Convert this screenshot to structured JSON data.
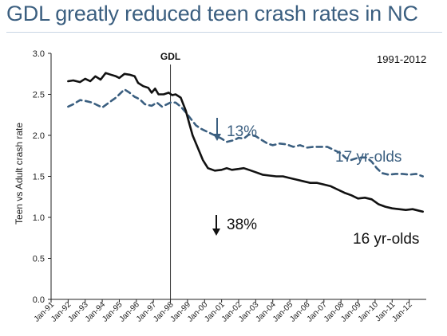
{
  "title": "GDL greatly reduced teen crash rates in NC",
  "date_range": "1991-2012",
  "chart_data": {
    "type": "line",
    "ylabel": "Teen vs Adult crash rate",
    "xlabel": "",
    "ylim": [
      0.0,
      3.0
    ],
    "yticks": [
      "0.0",
      "0.5",
      "1.0",
      "1.5",
      "2.0",
      "2.5",
      "3.0"
    ],
    "x_ticks": [
      "Jan-91",
      "Jan-92",
      "Jan-93",
      "Jan-94",
      "Jan-95",
      "Jan-96",
      "Jan-97",
      "Jan-98",
      "Jan-99",
      "Jan-00",
      "Jan-01",
      "Jan-02",
      "Jan-03",
      "Jan-04",
      "Jan-05",
      "Jan-06",
      "Jan-07",
      "Jan-08",
      "Jan-09",
      "Jan-10",
      "Jan-11",
      "Jan-12"
    ],
    "x_range": [
      1991.0,
      2013.0
    ],
    "vline": {
      "x": 1998.0,
      "label": "GDL"
    },
    "annotations": [
      {
        "text": "13%",
        "arrow": "down",
        "color": "#3b5f80"
      },
      {
        "text": "38%",
        "arrow": "down",
        "color": "#111111"
      }
    ],
    "series": [
      {
        "name": "17 yr-olds",
        "style": "dashed",
        "color": "#3b5f80",
        "points": [
          [
            1992.0,
            2.35
          ],
          [
            1992.3,
            2.38
          ],
          [
            1992.7,
            2.43
          ],
          [
            1993.0,
            2.42
          ],
          [
            1993.4,
            2.4
          ],
          [
            1993.8,
            2.36
          ],
          [
            1994.0,
            2.34
          ],
          [
            1994.4,
            2.4
          ],
          [
            1994.8,
            2.46
          ],
          [
            1995.0,
            2.5
          ],
          [
            1995.3,
            2.56
          ],
          [
            1995.6,
            2.52
          ],
          [
            1995.9,
            2.47
          ],
          [
            1996.2,
            2.44
          ],
          [
            1996.5,
            2.38
          ],
          [
            1996.9,
            2.36
          ],
          [
            1997.2,
            2.4
          ],
          [
            1997.5,
            2.35
          ],
          [
            1997.8,
            2.38
          ],
          [
            1998.0,
            2.4
          ],
          [
            1998.3,
            2.4
          ],
          [
            1998.6,
            2.35
          ],
          [
            1998.9,
            2.28
          ],
          [
            1999.2,
            2.2
          ],
          [
            1999.5,
            2.12
          ],
          [
            1999.8,
            2.08
          ],
          [
            2000.2,
            2.04
          ],
          [
            2000.6,
            2.0
          ],
          [
            2001.0,
            1.96
          ],
          [
            2001.3,
            1.92
          ],
          [
            2001.7,
            1.94
          ],
          [
            2002.0,
            1.97
          ],
          [
            2002.3,
            1.96
          ],
          [
            2002.6,
            2.01
          ],
          [
            2003.0,
            1.99
          ],
          [
            2003.3,
            1.95
          ],
          [
            2003.7,
            1.9
          ],
          [
            2004.0,
            1.88
          ],
          [
            2004.4,
            1.9
          ],
          [
            2004.8,
            1.89
          ],
          [
            2005.2,
            1.86
          ],
          [
            2005.6,
            1.88
          ],
          [
            2006.0,
            1.85
          ],
          [
            2006.4,
            1.86
          ],
          [
            2006.8,
            1.86
          ],
          [
            2007.2,
            1.86
          ],
          [
            2007.6,
            1.82
          ],
          [
            2008.0,
            1.78
          ],
          [
            2008.3,
            1.72
          ],
          [
            2008.6,
            1.7
          ],
          [
            2008.9,
            1.72
          ],
          [
            2009.2,
            1.73
          ],
          [
            2009.5,
            1.73
          ],
          [
            2009.8,
            1.68
          ],
          [
            2010.1,
            1.6
          ],
          [
            2010.4,
            1.54
          ],
          [
            2010.8,
            1.52
          ],
          [
            2011.2,
            1.53
          ],
          [
            2011.6,
            1.53
          ],
          [
            2012.0,
            1.52
          ],
          [
            2012.4,
            1.53
          ],
          [
            2012.8,
            1.5
          ]
        ]
      },
      {
        "name": "16 yr-olds",
        "style": "solid",
        "color": "#111111",
        "points": [
          [
            1992.0,
            2.66
          ],
          [
            1992.3,
            2.67
          ],
          [
            1992.7,
            2.65
          ],
          [
            1993.0,
            2.69
          ],
          [
            1993.3,
            2.66
          ],
          [
            1993.6,
            2.72
          ],
          [
            1993.9,
            2.68
          ],
          [
            1994.2,
            2.76
          ],
          [
            1994.5,
            2.74
          ],
          [
            1994.8,
            2.72
          ],
          [
            1995.0,
            2.7
          ],
          [
            1995.3,
            2.75
          ],
          [
            1995.6,
            2.74
          ],
          [
            1995.9,
            2.72
          ],
          [
            1996.1,
            2.64
          ],
          [
            1996.4,
            2.6
          ],
          [
            1996.7,
            2.58
          ],
          [
            1996.9,
            2.52
          ],
          [
            1997.1,
            2.57
          ],
          [
            1997.3,
            2.5
          ],
          [
            1997.6,
            2.5
          ],
          [
            1997.9,
            2.52
          ],
          [
            1998.1,
            2.49
          ],
          [
            1998.3,
            2.5
          ],
          [
            1998.6,
            2.46
          ],
          [
            1998.9,
            2.3
          ],
          [
            1999.1,
            2.15
          ],
          [
            1999.3,
            2.0
          ],
          [
            1999.6,
            1.85
          ],
          [
            1999.9,
            1.7
          ],
          [
            2000.2,
            1.6
          ],
          [
            2000.6,
            1.57
          ],
          [
            2001.0,
            1.58
          ],
          [
            2001.3,
            1.6
          ],
          [
            2001.6,
            1.58
          ],
          [
            2002.0,
            1.59
          ],
          [
            2002.3,
            1.6
          ],
          [
            2002.6,
            1.58
          ],
          [
            2003.0,
            1.55
          ],
          [
            2003.4,
            1.52
          ],
          [
            2003.8,
            1.51
          ],
          [
            2004.2,
            1.5
          ],
          [
            2004.6,
            1.5
          ],
          [
            2005.0,
            1.48
          ],
          [
            2005.4,
            1.46
          ],
          [
            2005.8,
            1.44
          ],
          [
            2006.2,
            1.42
          ],
          [
            2006.6,
            1.42
          ],
          [
            2007.0,
            1.4
          ],
          [
            2007.4,
            1.38
          ],
          [
            2007.8,
            1.34
          ],
          [
            2008.2,
            1.3
          ],
          [
            2008.6,
            1.27
          ],
          [
            2009.0,
            1.23
          ],
          [
            2009.4,
            1.24
          ],
          [
            2009.8,
            1.22
          ],
          [
            2010.2,
            1.16
          ],
          [
            2010.6,
            1.13
          ],
          [
            2011.0,
            1.11
          ],
          [
            2011.4,
            1.1
          ],
          [
            2011.8,
            1.09
          ],
          [
            2012.2,
            1.1
          ],
          [
            2012.6,
            1.08
          ],
          [
            2012.8,
            1.07
          ]
        ]
      }
    ]
  }
}
